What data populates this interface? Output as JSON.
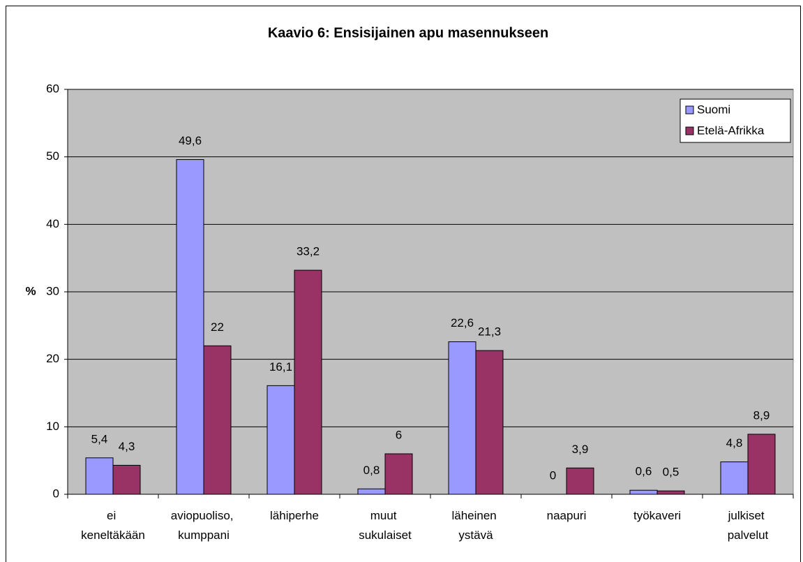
{
  "chart_data": {
    "type": "bar",
    "title": "Kaavio 6: Ensisijainen apu masennukseen",
    "y_label": "%",
    "categories": [
      "ei keneltäkään",
      "aviopuoliso, kumppani",
      "lähiperhe",
      "muut sukulaiset",
      "läheinen ystävä",
      "naapuri",
      "työkaveri",
      "julkiset palvelut"
    ],
    "series": [
      {
        "name": "Suomi",
        "color": "#9999ff",
        "values": [
          5.4,
          49.6,
          16.1,
          0.8,
          22.6,
          0,
          0.6,
          4.8
        ],
        "value_labels": [
          "5,4",
          "49,6",
          "16,1",
          "0,8",
          "22,6",
          "0",
          "0,6",
          "4,8"
        ]
      },
      {
        "name": "Etelä-Afrikka",
        "color": "#993366",
        "values": [
          4.3,
          22,
          33.2,
          6,
          21.3,
          3.9,
          0.5,
          8.9
        ],
        "value_labels": [
          "4,3",
          "22",
          "33,2",
          "6",
          "21,3",
          "3,9",
          "0,5",
          "8,9"
        ]
      }
    ],
    "ylim": [
      0,
      60
    ],
    "yticks": [
      0,
      10,
      20,
      30,
      40,
      50,
      60
    ],
    "grid": true,
    "legend": "top-right",
    "plot_background": "#c0c0c0"
  }
}
